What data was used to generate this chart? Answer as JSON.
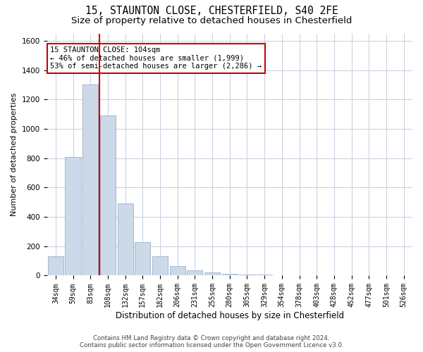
{
  "title1": "15, STAUNTON CLOSE, CHESTERFIELD, S40 2FE",
  "title2": "Size of property relative to detached houses in Chesterfield",
  "xlabel": "Distribution of detached houses by size in Chesterfield",
  "ylabel": "Number of detached properties",
  "categories": [
    "34sqm",
    "59sqm",
    "83sqm",
    "108sqm",
    "132sqm",
    "157sqm",
    "182sqm",
    "206sqm",
    "231sqm",
    "255sqm",
    "280sqm",
    "305sqm",
    "329sqm",
    "354sqm",
    "378sqm",
    "403sqm",
    "428sqm",
    "452sqm",
    "477sqm",
    "501sqm",
    "526sqm"
  ],
  "values": [
    130,
    810,
    1300,
    1090,
    490,
    230,
    130,
    65,
    35,
    22,
    10,
    8,
    6,
    3,
    3,
    2,
    1,
    1,
    1,
    1,
    1
  ],
  "bar_color": "#ccd9e8",
  "bar_edgecolor": "#9ab0c8",
  "vline_color": "#cc0000",
  "vline_x_index": 2.5,
  "annotation_text": "15 STAUNTON CLOSE: 104sqm\n← 46% of detached houses are smaller (1,999)\n53% of semi-detached houses are larger (2,286) →",
  "annotation_box_edgecolor": "#cc0000",
  "ylim": [
    0,
    1650
  ],
  "yticks": [
    0,
    200,
    400,
    600,
    800,
    1000,
    1200,
    1400,
    1600
  ],
  "footer": "Contains HM Land Registry data © Crown copyright and database right 2024.\nContains public sector information licensed under the Open Government Licence v3.0.",
  "background_color": "#ffffff",
  "grid_color": "#c5cfe0",
  "title_fontsize": 10.5,
  "subtitle_fontsize": 9.5,
  "tick_fontsize": 7,
  "xlabel_fontsize": 8.5,
  "ylabel_fontsize": 8,
  "annotation_fontsize": 7.5
}
